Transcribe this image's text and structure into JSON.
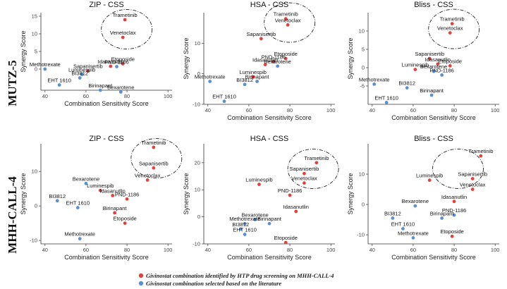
{
  "colors": {
    "identified": "#e0433f",
    "literature": "#5b8fd6"
  },
  "legend": [
    {
      "key": "identified",
      "label": "Givinostat combination identified by HTP drug screening on MHH-CALL-4"
    },
    {
      "key": "literature",
      "label": "Givinostat combination selected based on the literature"
    }
  ],
  "rows": [
    {
      "label": "MUTZ-5"
    },
    {
      "label": "MHH-CALL-4"
    }
  ],
  "chart_data": [
    {
      "type": "scatter",
      "row": 0,
      "title": "ZIP - CSS",
      "xlabel": "Combination Sensitivity Score",
      "ylabel": "Synergy Score",
      "xlim": [
        38,
        102
      ],
      "ylim": [
        -6,
        16
      ],
      "xticks": [
        40,
        60,
        80,
        100
      ],
      "yticks": [
        0,
        5,
        10,
        15
      ],
      "points": [
        {
          "name": "Trametinib",
          "x": 79,
          "y": 14,
          "group": "identified"
        },
        {
          "name": "Venetoclax",
          "x": 78,
          "y": 9,
          "group": "identified"
        },
        {
          "name": "Sapanisertib",
          "x": 61,
          "y": -0.5,
          "group": "identified"
        },
        {
          "name": "Etoposide",
          "x": 78,
          "y": 1.5,
          "group": "identified"
        },
        {
          "name": "Idasanutlin",
          "x": 72,
          "y": 0.8,
          "group": "identified"
        },
        {
          "name": "PND-1186",
          "x": 75,
          "y": 0.7,
          "group": "literature"
        },
        {
          "name": "Luminespib",
          "x": 58,
          "y": -1.5,
          "group": "literature"
        },
        {
          "name": "Methotrexate",
          "x": 40,
          "y": 0,
          "group": "literature"
        },
        {
          "name": "BI3812",
          "x": 57,
          "y": -2.5,
          "group": "literature"
        },
        {
          "name": "EHT 1610",
          "x": 47,
          "y": -4.5,
          "group": "literature"
        },
        {
          "name": "Birinapant",
          "x": 67,
          "y": -6,
          "group": "literature"
        },
        {
          "name": "Bexarotene",
          "x": 77,
          "y": -6.5,
          "group": "literature"
        }
      ]
    },
    {
      "type": "scatter",
      "row": 0,
      "title": "HSA - CSS",
      "xlabel": "Combination Sensitivity Score",
      "ylabel": "Synergy Score",
      "xlim": [
        38,
        102
      ],
      "ylim": [
        -10,
        20
      ],
      "xticks": [
        40,
        60,
        80,
        100
      ],
      "yticks": [
        -10,
        0,
        10
      ],
      "points": [
        {
          "name": "Trametinib",
          "x": 78,
          "y": 18,
          "group": "identified"
        },
        {
          "name": "Venetoclax",
          "x": 79,
          "y": 16,
          "group": "identified"
        },
        {
          "name": "Sapanisertib",
          "x": 66,
          "y": 11.5,
          "group": "identified"
        },
        {
          "name": "Etoposide",
          "x": 78,
          "y": 5,
          "group": "identified"
        },
        {
          "name": "PND-1186",
          "x": 72,
          "y": 4,
          "group": "identified"
        },
        {
          "name": "Idasanutlin",
          "x": 68,
          "y": 3,
          "group": "identified"
        },
        {
          "name": "Bexarotene",
          "x": 74,
          "y": 2.5,
          "group": "literature"
        },
        {
          "name": "Luminespib",
          "x": 62,
          "y": -1,
          "group": "identified"
        },
        {
          "name": "Methotrexate",
          "x": 41,
          "y": -2.5,
          "group": "literature"
        },
        {
          "name": "Birinapant",
          "x": 64,
          "y": -2.5,
          "group": "literature"
        },
        {
          "name": "BI3812",
          "x": 58,
          "y": -3.5,
          "group": "literature"
        },
        {
          "name": "EHT 1610",
          "x": 48,
          "y": -9,
          "group": "literature"
        }
      ]
    },
    {
      "type": "scatter",
      "row": 0,
      "title": "Bliss - CSS",
      "xlabel": "Combination Sensitivity Score",
      "ylabel": "Synergy Score",
      "xlim": [
        38,
        102
      ],
      "ylim": [
        -10,
        15
      ],
      "xticks": [
        40,
        60,
        80,
        100
      ],
      "yticks": [
        -5,
        0,
        5,
        10
      ],
      "points": [
        {
          "name": "Trametinib",
          "x": 79,
          "y": 12,
          "group": "identified"
        },
        {
          "name": "Venetoclax",
          "x": 78,
          "y": 9.5,
          "group": "identified"
        },
        {
          "name": "Sapanisertib",
          "x": 68,
          "y": 2.5,
          "group": "identified"
        },
        {
          "name": "Idasanutlin",
          "x": 72,
          "y": 1,
          "group": "identified"
        },
        {
          "name": "Etoposide",
          "x": 78,
          "y": 0.5,
          "group": "identified"
        },
        {
          "name": "Luminespib",
          "x": 61,
          "y": -0.5,
          "group": "identified"
        },
        {
          "name": "Bexarotene",
          "x": 70,
          "y": -1,
          "group": "literature"
        },
        {
          "name": "PND-1186",
          "x": 74,
          "y": -2,
          "group": "literature"
        },
        {
          "name": "Methotrexate",
          "x": 41,
          "y": -4.5,
          "group": "literature"
        },
        {
          "name": "BI3812",
          "x": 57,
          "y": -5.5,
          "group": "literature"
        },
        {
          "name": "Birinapant",
          "x": 69,
          "y": -7.5,
          "group": "literature"
        },
        {
          "name": "EHT 1610",
          "x": 47,
          "y": -9.5,
          "group": "literature"
        }
      ]
    },
    {
      "type": "scatter",
      "row": 1,
      "title": "ZIP - CSS",
      "xlabel": "Combination Sensitivity Score",
      "ylabel": "Synergy Score",
      "xlim": [
        38,
        102
      ],
      "ylim": [
        -11,
        18
      ],
      "xticks": [
        40,
        60,
        80,
        100
      ],
      "yticks": [
        -10,
        0,
        10
      ],
      "points": [
        {
          "name": "Trametinib",
          "x": 93,
          "y": 17,
          "group": "identified"
        },
        {
          "name": "Sapanisertib",
          "x": 93,
          "y": 11,
          "group": "identified"
        },
        {
          "name": "Venetoclax",
          "x": 90,
          "y": 7.5,
          "group": "identified"
        },
        {
          "name": "Bexarotene",
          "x": 60,
          "y": 6.5,
          "group": "literature"
        },
        {
          "name": "Luminespib",
          "x": 67,
          "y": 4.5,
          "group": "identified"
        },
        {
          "name": "Idasanutlin",
          "x": 73,
          "y": 3,
          "group": "identified"
        },
        {
          "name": "PND-1186",
          "x": 80,
          "y": 2,
          "group": "identified"
        },
        {
          "name": "BI3812",
          "x": 46,
          "y": 1.5,
          "group": "literature"
        },
        {
          "name": "EHT 1610",
          "x": 56,
          "y": -0.5,
          "group": "literature"
        },
        {
          "name": "Birinapant",
          "x": 74,
          "y": -2,
          "group": "identified"
        },
        {
          "name": "Etoposide",
          "x": 79,
          "y": -5,
          "group": "identified"
        },
        {
          "name": "Methotrexate",
          "x": 57,
          "y": -9.5,
          "group": "literature"
        }
      ]
    },
    {
      "type": "scatter",
      "row": 1,
      "title": "HSA - CSS",
      "xlabel": "Combination Sensitivity Score",
      "ylabel": "Synergy Score",
      "xlim": [
        38,
        102
      ],
      "ylim": [
        -10,
        27
      ],
      "xticks": [
        40,
        60,
        80,
        100
      ],
      "yticks": [
        -10,
        0,
        10,
        20
      ],
      "points": [
        {
          "name": "Trametinib",
          "x": 93,
          "y": 20,
          "group": "identified"
        },
        {
          "name": "Sapanisertib",
          "x": 87,
          "y": 16,
          "group": "identified"
        },
        {
          "name": "Luminespib",
          "x": 65,
          "y": 12,
          "group": "identified"
        },
        {
          "name": "Venetoclax",
          "x": 87,
          "y": 12.5,
          "group": "identified"
        },
        {
          "name": "PND-1186",
          "x": 80,
          "y": 8,
          "group": "identified"
        },
        {
          "name": "Idasanutlin",
          "x": 83,
          "y": 2,
          "group": "identified"
        },
        {
          "name": "Bexarotene",
          "x": 63,
          "y": -1,
          "group": "literature"
        },
        {
          "name": "Methotrexate",
          "x": 58,
          "y": -2.5,
          "group": "literature"
        },
        {
          "name": "Birinapant",
          "x": 70,
          "y": -2.5,
          "group": "literature"
        },
        {
          "name": "BI3812",
          "x": 56,
          "y": -4.5,
          "group": "literature"
        },
        {
          "name": "EHT 1610",
          "x": 58,
          "y": -6.5,
          "group": "literature"
        },
        {
          "name": "Etoposide",
          "x": 78,
          "y": -9.5,
          "group": "identified"
        }
      ]
    },
    {
      "type": "scatter",
      "row": 1,
      "title": "Bliss - CSS",
      "xlabel": "Combination Sensitivity Score",
      "ylabel": "Synergy Score",
      "xlim": [
        38,
        102
      ],
      "ylim": [
        -13,
        20
      ],
      "xticks": [
        40,
        60,
        80,
        100
      ],
      "yticks": [
        -10,
        0,
        10
      ],
      "points": [
        {
          "name": "Trametinib",
          "x": 93,
          "y": 16,
          "group": "identified"
        },
        {
          "name": "Luminespib",
          "x": 68,
          "y": 8,
          "group": "identified"
        },
        {
          "name": "Sapanisertib",
          "x": 89,
          "y": 8.5,
          "group": "identified"
        },
        {
          "name": "Venetoclax",
          "x": 89,
          "y": 5,
          "group": "identified"
        },
        {
          "name": "Idasanutlin",
          "x": 80,
          "y": 1,
          "group": "identified"
        },
        {
          "name": "Bexarotene",
          "x": 61,
          "y": -0.5,
          "group": "literature"
        },
        {
          "name": "PND-1186",
          "x": 80,
          "y": -3.5,
          "group": "literature"
        },
        {
          "name": "BI3812",
          "x": 50,
          "y": -4.5,
          "group": "literature"
        },
        {
          "name": "Birinapant",
          "x": 74,
          "y": -4.5,
          "group": "literature"
        },
        {
          "name": "EHT 1610",
          "x": 55,
          "y": -8,
          "group": "literature"
        },
        {
          "name": "Methotrexate",
          "x": 60,
          "y": -11,
          "group": "literature"
        },
        {
          "name": "Etoposide",
          "x": 79,
          "y": -10.5,
          "group": "identified"
        }
      ]
    }
  ]
}
